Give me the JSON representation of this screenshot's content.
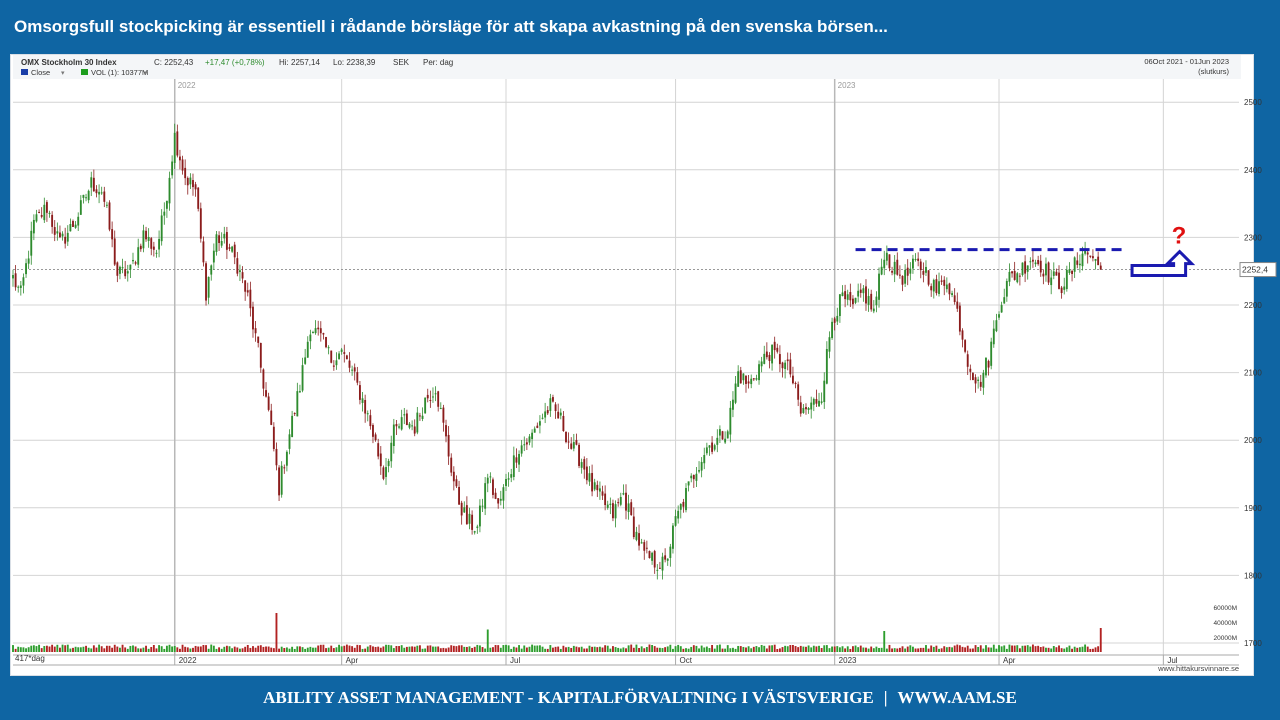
{
  "slide": {
    "headline": "Omsorgsfull stockpicking är essentiell i rådande börsläge för att skapa avkastning på den svenska börsen...",
    "footer_left": "ABILITY ASSET MANAGEMENT -  KAPITALFÖRVALTNING I VÄSTSVERIGE",
    "footer_divider": "|",
    "footer_right": "WWW.AAM.SE",
    "background_color": "#0f65a3"
  },
  "chart_header": {
    "instrument": "OMX Stockholm 30 Index",
    "close": "C: 2252,43",
    "change": "+17,47 (+0,78%)",
    "high": "Hi: 2257,14",
    "low": "Lo: 2238,39",
    "currency": "SEK",
    "period": "Per: dag",
    "date_range": "06Oct 2021 - 01Jun 2023",
    "price_basis": "(slutkurs)",
    "legend_close": "Close",
    "legend_vol": "VOL (1): 10377M",
    "bars_label": "417*dag",
    "watermark": "www.hittakursvinnare.se"
  },
  "chart_data": {
    "type": "line",
    "title": "OMX Stockholm 30 Index",
    "ylim": [
      1700,
      2520
    ],
    "y_ticks": [
      2500,
      2400,
      2300,
      2200,
      2100,
      2000,
      1900,
      1800,
      1700
    ],
    "volume_ticks": [
      "60000M",
      "40000M",
      "20000M"
    ],
    "x_labels": [
      {
        "label": "2022",
        "index": 62
      },
      {
        "label": "Apr",
        "index": 126
      },
      {
        "label": "Jul",
        "index": 189
      },
      {
        "label": "Oct",
        "index": 254
      },
      {
        "label": "2023",
        "index": 315
      },
      {
        "label": "Apr",
        "index": 378
      },
      {
        "label": "Jul",
        "index": 441
      }
    ],
    "year_markers": [
      {
        "label": "2022",
        "index": 62
      },
      {
        "label": "2023",
        "index": 315
      }
    ],
    "last_value_label": "2252,4",
    "last_value": 2252.43,
    "resistance_level": 2282,
    "resistance_range": [
      323,
      426
    ],
    "annotation": "?",
    "colors": {
      "up": "#2e8b2e",
      "down": "#8b1c1c",
      "annotation": "#1a1ab0",
      "question": "#e01010",
      "volume_up": "#2e9e2e",
      "volume_down": "#b22222"
    },
    "anchors": [
      [
        0,
        2240
      ],
      [
        3,
        2215
      ],
      [
        8,
        2320
      ],
      [
        13,
        2345
      ],
      [
        18,
        2290
      ],
      [
        24,
        2325
      ],
      [
        30,
        2380
      ],
      [
        34,
        2370
      ],
      [
        36,
        2335
      ],
      [
        40,
        2245
      ],
      [
        45,
        2250
      ],
      [
        50,
        2305
      ],
      [
        55,
        2280
      ],
      [
        58,
        2340
      ],
      [
        62,
        2450
      ],
      [
        66,
        2390
      ],
      [
        70,
        2370
      ],
      [
        74,
        2220
      ],
      [
        78,
        2300
      ],
      [
        82,
        2290
      ],
      [
        86,
        2260
      ],
      [
        90,
        2210
      ],
      [
        94,
        2130
      ],
      [
        98,
        2040
      ],
      [
        102,
        1930
      ],
      [
        106,
        2010
      ],
      [
        110,
        2080
      ],
      [
        114,
        2170
      ],
      [
        118,
        2150
      ],
      [
        122,
        2120
      ],
      [
        126,
        2130
      ],
      [
        130,
        2100
      ],
      [
        134,
        2060
      ],
      [
        138,
        2010
      ],
      [
        142,
        1950
      ],
      [
        146,
        2010
      ],
      [
        150,
        2030
      ],
      [
        154,
        2020
      ],
      [
        158,
        2060
      ],
      [
        162,
        2080
      ],
      [
        166,
        2000
      ],
      [
        170,
        1920
      ],
      [
        174,
        1880
      ],
      [
        178,
        1870
      ],
      [
        182,
        1950
      ],
      [
        186,
        1900
      ],
      [
        190,
        1950
      ],
      [
        194,
        1990
      ],
      [
        198,
        2000
      ],
      [
        202,
        2030
      ],
      [
        206,
        2050
      ],
      [
        210,
        2030
      ],
      [
        214,
        1990
      ],
      [
        218,
        1970
      ],
      [
        222,
        1930
      ],
      [
        226,
        1910
      ],
      [
        230,
        1890
      ],
      [
        234,
        1920
      ],
      [
        238,
        1870
      ],
      [
        242,
        1830
      ],
      [
        246,
        1820
      ],
      [
        250,
        1815
      ],
      [
        254,
        1880
      ],
      [
        258,
        1920
      ],
      [
        262,
        1960
      ],
      [
        266,
        1990
      ],
      [
        270,
        2000
      ],
      [
        274,
        2020
      ],
      [
        278,
        2100
      ],
      [
        282,
        2080
      ],
      [
        286,
        2110
      ],
      [
        290,
        2130
      ],
      [
        294,
        2120
      ],
      [
        298,
        2100
      ],
      [
        302,
        2040
      ],
      [
        306,
        2050
      ],
      [
        310,
        2070
      ],
      [
        314,
        2180
      ],
      [
        318,
        2210
      ],
      [
        322,
        2195
      ],
      [
        326,
        2220
      ],
      [
        330,
        2190
      ],
      [
        334,
        2280
      ],
      [
        338,
        2250
      ],
      [
        342,
        2240
      ],
      [
        346,
        2260
      ],
      [
        350,
        2250
      ],
      [
        354,
        2220
      ],
      [
        358,
        2240
      ],
      [
        362,
        2190
      ],
      [
        366,
        2120
      ],
      [
        370,
        2080
      ],
      [
        374,
        2120
      ],
      [
        378,
        2200
      ],
      [
        382,
        2240
      ],
      [
        386,
        2250
      ],
      [
        390,
        2270
      ],
      [
        394,
        2260
      ],
      [
        398,
        2240
      ],
      [
        402,
        2230
      ],
      [
        406,
        2250
      ],
      [
        410,
        2280
      ],
      [
        414,
        2270
      ],
      [
        417,
        2252
      ]
    ],
    "volume_spikes": [
      {
        "index": 101,
        "value": 52000
      },
      {
        "index": 182,
        "value": 30000
      },
      {
        "index": 334,
        "value": 28000
      },
      {
        "index": 417,
        "value": 32000
      }
    ]
  }
}
